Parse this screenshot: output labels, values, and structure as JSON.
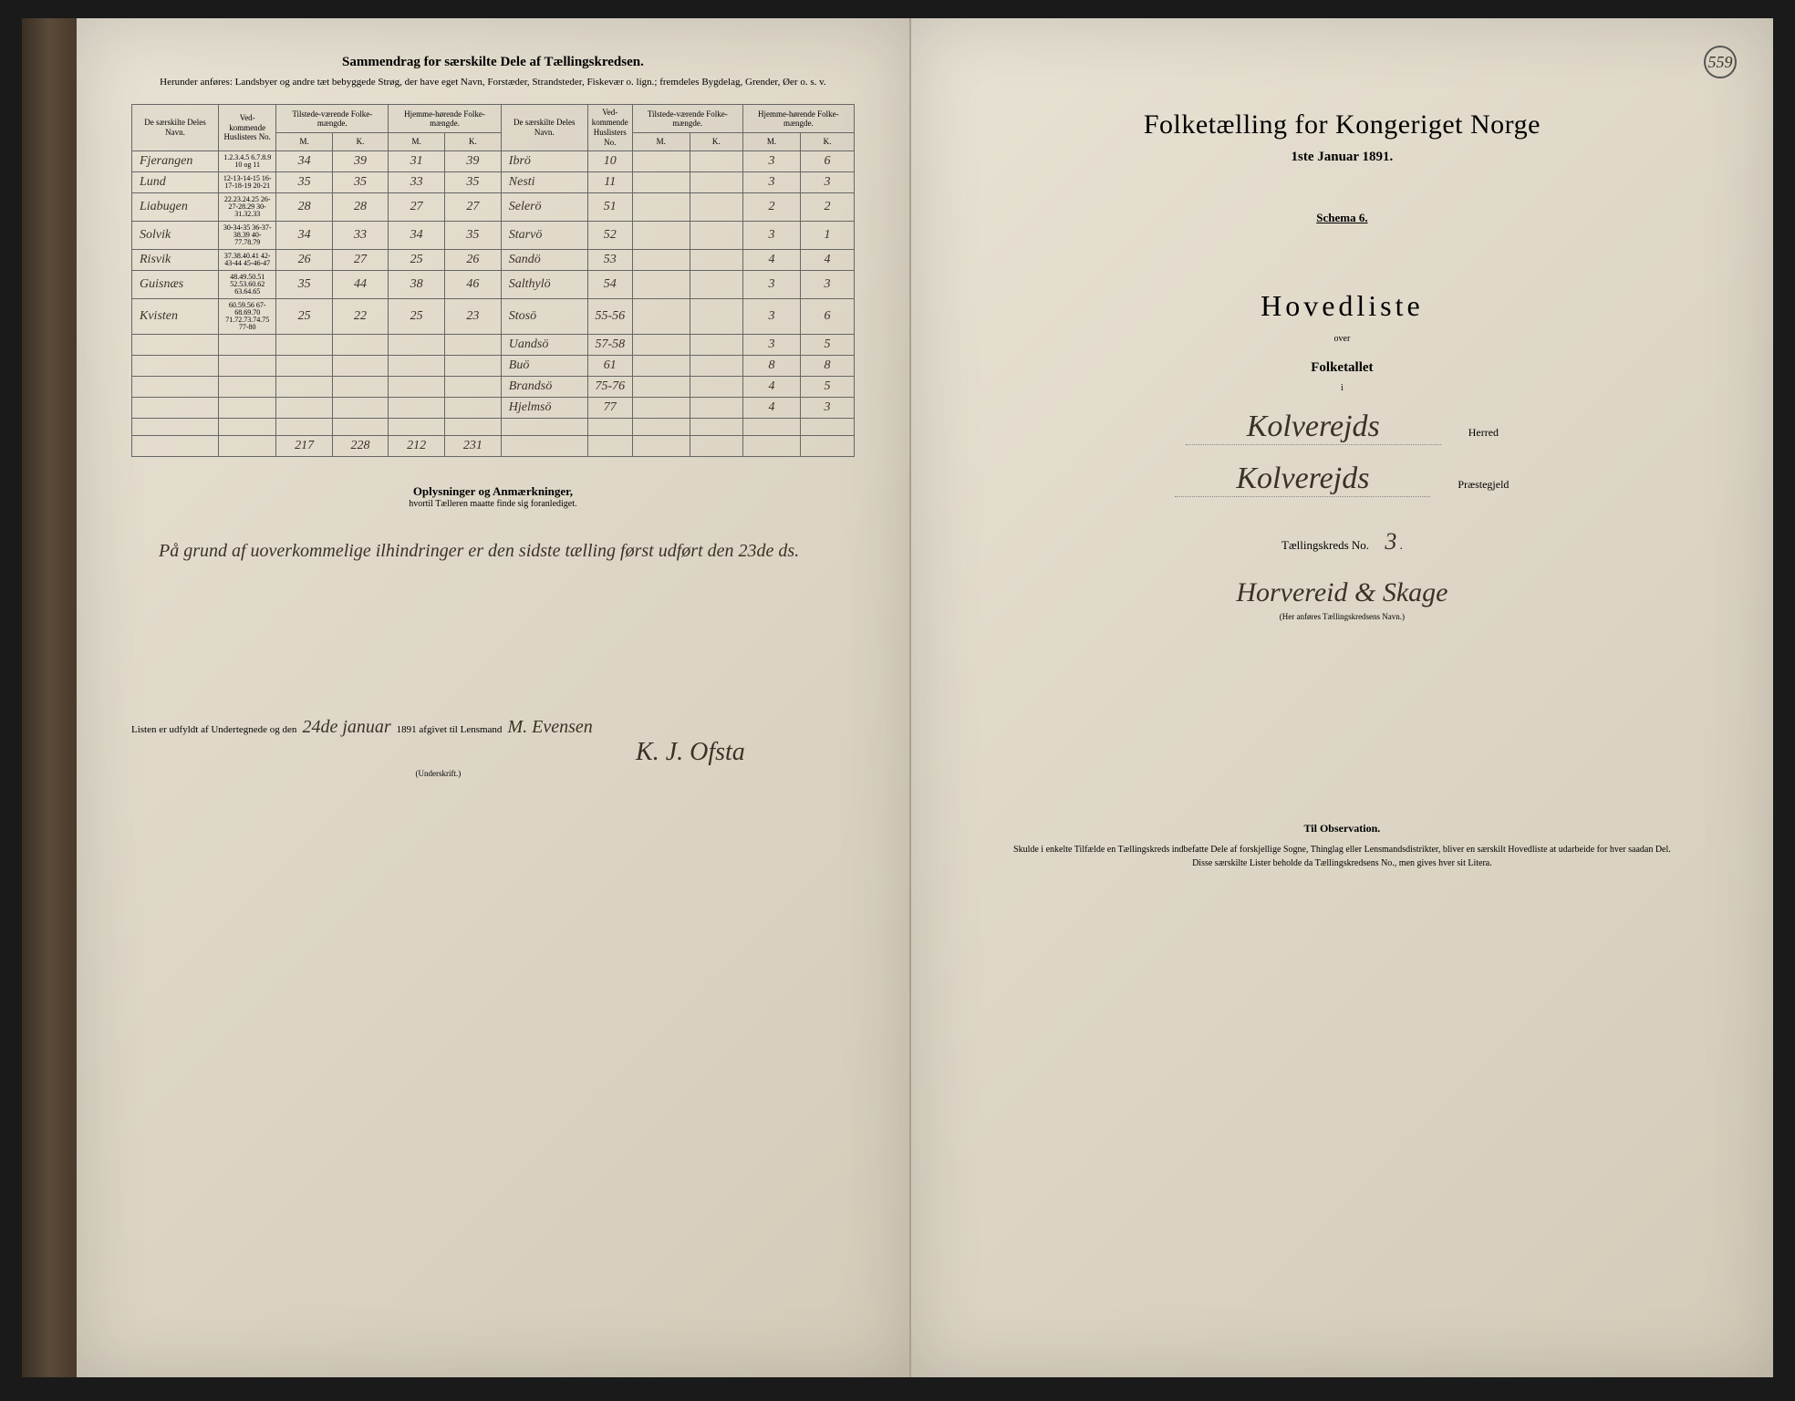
{
  "left": {
    "title": "Sammendrag for særskilte Dele af Tællingskredsen.",
    "subtitle": "Herunder anføres: Landsbyer og andre tæt bebyggede Strøg, der have eget Navn, Forstæder, Strandsteder, Fiskevær o. lign.; fremdeles Bygdelag, Grender, Øer o. s. v.",
    "headers": {
      "name": "De særskilte Deles Navn.",
      "huslister": "Ved-kommende Huslisters No.",
      "tilstede": "Tilstede-værende Folke-mængde.",
      "hjemme": "Hjemme-hørende Folke-mængde.",
      "m": "M.",
      "k": "K."
    },
    "rows_a": [
      {
        "name": "Fjerangen",
        "hus": "1.2.3.4.5 6.7.8.9 10 og 11",
        "tm": "34",
        "tk": "39",
        "hm": "31",
        "hk": "39"
      },
      {
        "name": "Lund",
        "hus": "12-13-14-15 16-17-18-19 20-21",
        "tm": "35",
        "tk": "35",
        "hm": "33",
        "hk": "35"
      },
      {
        "name": "Liabugen",
        "hus": "22.23.24.25 26-27-28.29 30-31.32.33",
        "tm": "28",
        "tk": "28",
        "hm": "27",
        "hk": "27"
      },
      {
        "name": "Solvik",
        "hus": "30-34-35 36-37-38.39 40-77.78.79",
        "tm": "34",
        "tk": "33",
        "hm": "34",
        "hk": "35"
      },
      {
        "name": "Risvik",
        "hus": "37.38.40.41 42-43-44 45-46-47",
        "tm": "26",
        "tk": "27",
        "hm": "25",
        "hk": "26"
      },
      {
        "name": "Guisnæs",
        "hus": "48.49.50.51 52.53.60.62 63.64.65",
        "tm": "35",
        "tk": "44",
        "hm": "38",
        "hk": "46"
      },
      {
        "name": "Kvisten",
        "hus": "60.59.56 67-68.69.70 71.72.73.74.75 77-80",
        "tm": "25",
        "tk": "22",
        "hm": "25",
        "hk": "23"
      }
    ],
    "rows_b": [
      {
        "name": "Ibrö",
        "hus": "10",
        "tm": "",
        "tk": "",
        "hm": "3",
        "hk": "6"
      },
      {
        "name": "Nesti",
        "hus": "11",
        "tm": "",
        "tk": "",
        "hm": "3",
        "hk": "3"
      },
      {
        "name": "Selerö",
        "hus": "51",
        "tm": "",
        "tk": "",
        "hm": "2",
        "hk": "2"
      },
      {
        "name": "Starvö",
        "hus": "52",
        "tm": "",
        "tk": "",
        "hm": "3",
        "hk": "1"
      },
      {
        "name": "Sandö",
        "hus": "53",
        "tm": "",
        "tk": "",
        "hm": "4",
        "hk": "4"
      },
      {
        "name": "Salthylö",
        "hus": "54",
        "tm": "",
        "tk": "",
        "hm": "3",
        "hk": "3"
      },
      {
        "name": "Stosö",
        "hus": "55-56",
        "tm": "",
        "tk": "",
        "hm": "3",
        "hk": "6"
      },
      {
        "name": "Uandsö",
        "hus": "57-58",
        "tm": "",
        "tk": "",
        "hm": "3",
        "hk": "5"
      },
      {
        "name": "Buö",
        "hus": "61",
        "tm": "",
        "tk": "",
        "hm": "8",
        "hk": "8"
      },
      {
        "name": "Brandsö",
        "hus": "75-76",
        "tm": "",
        "tk": "",
        "hm": "4",
        "hk": "5"
      },
      {
        "name": "Hjelmsö",
        "hus": "77",
        "tm": "",
        "tk": "",
        "hm": "4",
        "hk": "3"
      }
    ],
    "totals": {
      "tm": "217",
      "tk": "228",
      "hm": "212",
      "hk": "231"
    },
    "notes_title": "Oplysninger og Anmærkninger,",
    "notes_sub": "hvortil Tælleren maatte finde sig foranlediget.",
    "notes_body": "På grund af uoverkommelige ilhindringer er den sidste tælling først udført den 23de ds.",
    "sign_prefix": "Listen er udfyldt af Undertegnede og den",
    "sign_date": "24de januar",
    "sign_mid": "1891 afgivet til Lensmand",
    "sign_lensmand": "M. Evensen",
    "signature": "K. J. Ofsta",
    "sign_sub": "(Underskrift.)"
  },
  "right": {
    "page_no": "559",
    "title": "Folketælling for Kongeriget Norge",
    "date": "1ste Januar 1891.",
    "schema": "Schema 6.",
    "hovedliste": "Hovedliste",
    "over": "over",
    "folketallet": "Folketallet",
    "i": "i",
    "herred_val": "Kolverejds",
    "herred_lbl": "Herred",
    "praeste_val": "Kolverejds",
    "praeste_lbl": "Præstegjeld",
    "kreds_lbl": "Tællingskreds No.",
    "kreds_no": "3",
    "kreds_name": "Horvereid & Skage",
    "kreds_sub": "(Her anføres Tællingskredsens Navn.)",
    "obs_title": "Til Observation.",
    "obs_body": "Skulde i enkelte Tilfælde en Tællingskreds indbefatte Dele af forskjellige Sogne, Thinglag eller Lensmandsdistrikter, bliver en særskilt Hovedliste at udarbeide for hver saadan Del. Disse særskilte Lister beholde da Tællingskredsens No., men gives hver sit Litera."
  }
}
